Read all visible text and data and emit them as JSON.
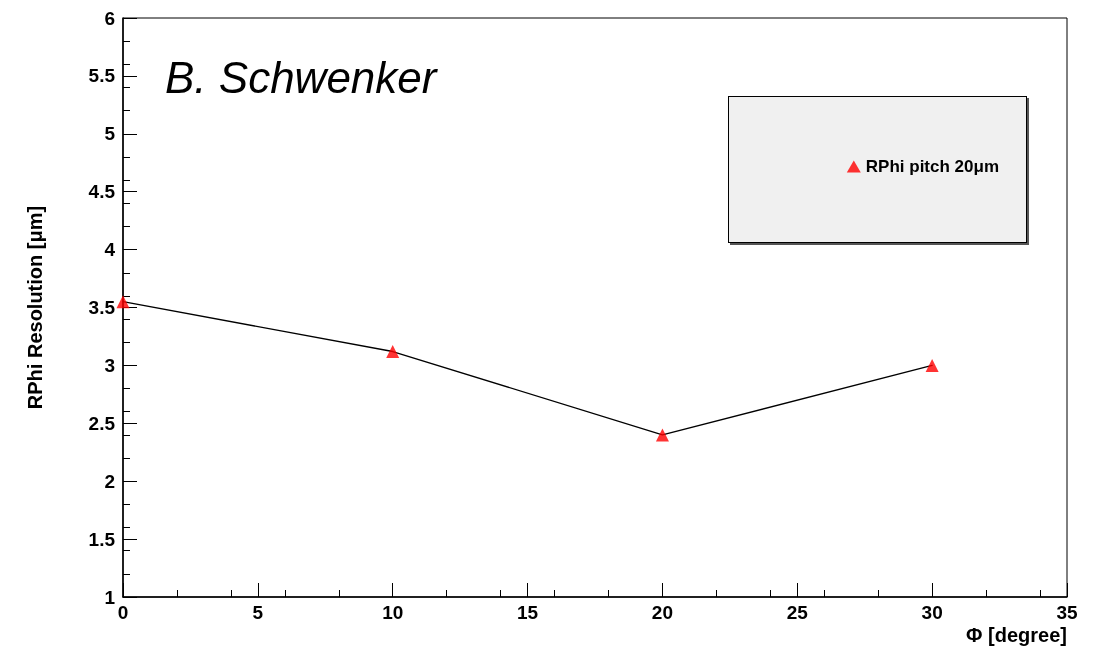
{
  "chart_data": {
    "type": "line",
    "xlabel": "Φ [degree]",
    "ylabel": "RPhi Resolution [μm]",
    "annotations": [
      "B. Schwenker"
    ],
    "xlim": [
      0,
      35
    ],
    "xticks": [
      0,
      5,
      10,
      15,
      20,
      25,
      30,
      35
    ],
    "ylim": [
      1,
      6
    ],
    "yticks": [
      1,
      1.5,
      2,
      2.5,
      3,
      3.5,
      4,
      4.5,
      5,
      5.5,
      6
    ],
    "grid": false,
    "legend": "top right",
    "line_style": "solid",
    "series": [
      {
        "type": "line",
        "color": "#000000",
        "marker": "none",
        "x": [
          0,
          10,
          20,
          30
        ],
        "values": [
          3.55,
          3.12,
          2.4,
          3.0
        ]
      },
      {
        "type": "scatter",
        "name": "RPhi pitch 20μm",
        "color": "#ff0000",
        "marker": "triangle",
        "x": [
          0,
          10,
          20,
          30
        ],
        "values": [
          3.55,
          3.12,
          2.4,
          3.0
        ]
      }
    ]
  }
}
